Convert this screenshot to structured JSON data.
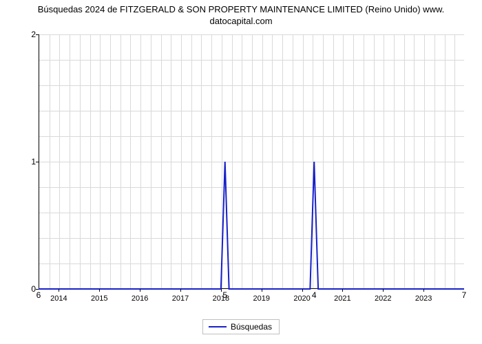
{
  "title_line1": "Búsquedas 2024 de FITZGERALD & SON PROPERTY MAINTENANCE LIMITED (Reino Unido) www.",
  "title_line2": "datocapital.com",
  "chart": {
    "type": "line",
    "series_name": "Búsquedas",
    "series_color": "#1720c9",
    "line_width": 2,
    "background_color": "#ffffff",
    "grid_color": "#d9d9d9",
    "axis_color": "#000000",
    "tick_fontsize": 12,
    "xtick_fontsize": 11,
    "ylim": [
      0,
      2
    ],
    "yticks": [
      0,
      1,
      2
    ],
    "y_minor_count": 4,
    "x_start": 2013.5,
    "x_end": 2024.0,
    "xticks": [
      2014,
      2015,
      2016,
      2017,
      2018,
      2019,
      2020,
      2021,
      2022,
      2023
    ],
    "x_minor_step": 0.25,
    "x": [
      2013.5,
      2018.0,
      2018.1,
      2018.2,
      2020.2,
      2020.3,
      2020.4,
      2024.0
    ],
    "y": [
      0,
      0,
      1,
      0,
      0,
      1,
      0,
      0
    ],
    "data_labels": [
      {
        "x": 2013.5,
        "y": 0,
        "text": "6",
        "dy": 2
      },
      {
        "x": 2018.1,
        "y": 0,
        "text": "5",
        "dy": 2
      },
      {
        "x": 2020.3,
        "y": 0,
        "text": "4",
        "dy": 2
      },
      {
        "x": 2024.0,
        "y": 0,
        "text": "7",
        "dy": 2
      }
    ]
  },
  "legend_label": "Búsquedas"
}
